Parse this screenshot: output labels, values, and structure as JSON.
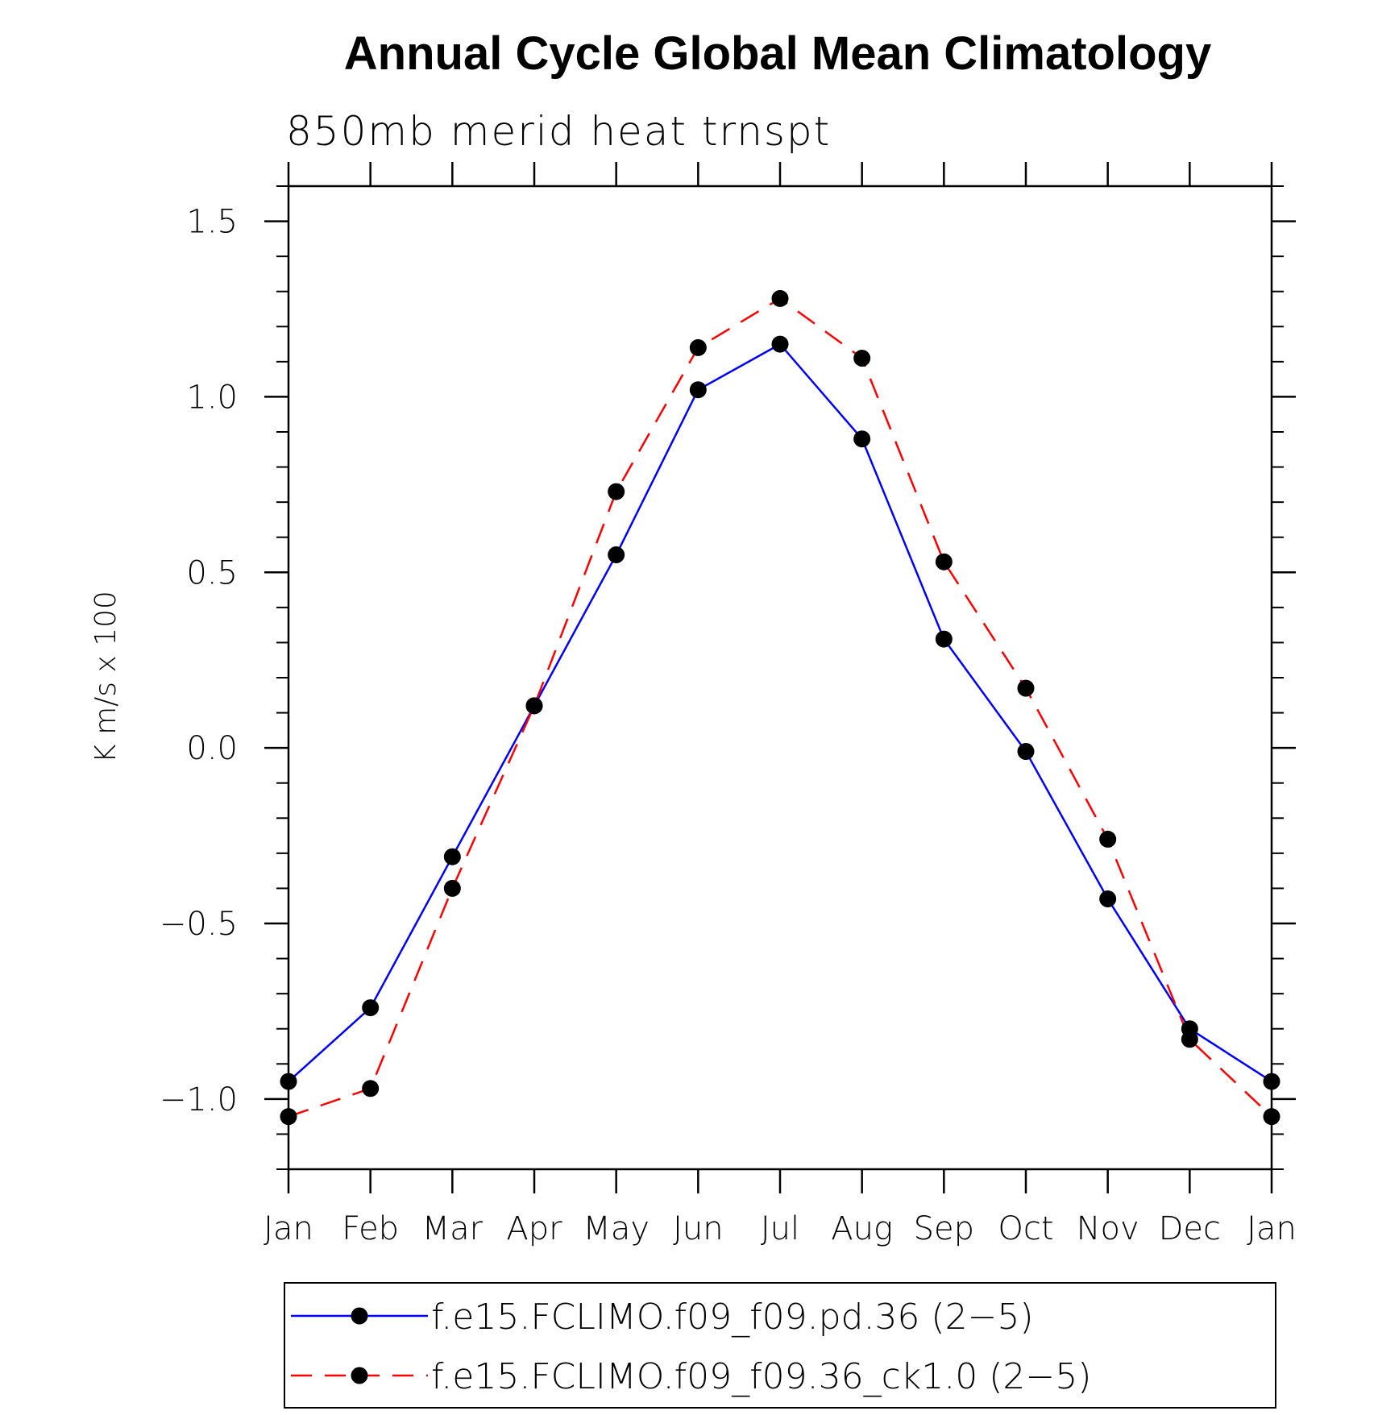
{
  "chart_data": {
    "type": "line",
    "title": "Annual Cycle Global Mean Climatology",
    "subtitle": "850mb merid heat trnspt",
    "ylabel": "K m/s x 100",
    "xlabel": "",
    "categories": [
      "Jan",
      "Feb",
      "Mar",
      "Apr",
      "May",
      "Jun",
      "Jul",
      "Aug",
      "Sep",
      "Oct",
      "Nov",
      "Dec",
      "Jan"
    ],
    "ylim": [
      -1.2,
      1.6
    ],
    "yticks": [
      -1.0,
      -0.5,
      0.0,
      0.5,
      1.0,
      1.5
    ],
    "ytick_labels": [
      "−1.0",
      "−0.5",
      "0.0",
      "0.5",
      "1.0",
      "1.5"
    ],
    "grid": false,
    "legend_position": "bottom",
    "series": [
      {
        "name": "f.e15.FCLIMO.f09_f09.pd.36 (2−5)",
        "color": "#0000ff",
        "dash": "solid",
        "marker": "filled-circle",
        "values": [
          -0.95,
          -0.74,
          -0.31,
          0.12,
          0.55,
          1.02,
          1.15,
          0.88,
          0.31,
          -0.01,
          -0.43,
          -0.8,
          -0.95
        ]
      },
      {
        "name": "f.e15.FCLIMO.f09_f09.36_ck1.0 (2−5)",
        "color": "#ff0000",
        "dash": "dashed",
        "marker": "filled-circle",
        "values": [
          -1.05,
          -0.97,
          -0.4,
          0.12,
          0.73,
          1.14,
          1.28,
          1.11,
          0.53,
          0.17,
          -0.26,
          -0.83,
          -1.05
        ]
      }
    ]
  }
}
